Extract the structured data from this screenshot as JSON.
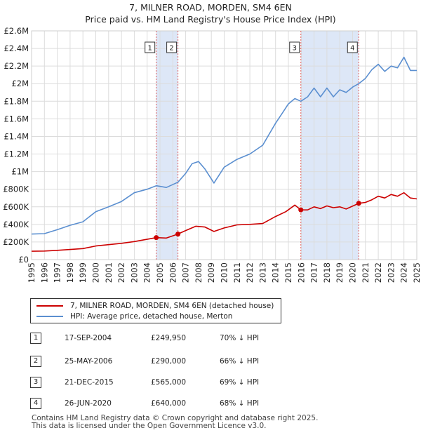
{
  "title_line1": "7, MILNER ROAD, MORDEN, SM4 6EN",
  "title_line2": "Price paid vs. HM Land Registry's House Price Index (HPI)",
  "legend": {
    "series1": "7, MILNER ROAD, MORDEN, SM4 6EN (detached house)",
    "series2": "HPI: Average price, detached house, Merton"
  },
  "colors": {
    "price": "#cc0000",
    "hpi": "#5b8fd0",
    "shade": "#dde7f7",
    "marker_line": "#e06060"
  },
  "sales": [
    {
      "num": "1",
      "date": "17-SEP-2004",
      "price": "£249,950",
      "hpi": "70% ↓ HPI"
    },
    {
      "num": "2",
      "date": "25-MAY-2006",
      "price": "£290,000",
      "hpi": "66% ↓ HPI"
    },
    {
      "num": "3",
      "date": "21-DEC-2015",
      "price": "£565,000",
      "hpi": "69% ↓ HPI"
    },
    {
      "num": "4",
      "date": "26-JUN-2020",
      "price": "£640,000",
      "hpi": "68% ↓ HPI"
    }
  ],
  "footer_line1": "Contains HM Land Registry data © Crown copyright and database right 2025.",
  "footer_line2": "This data is licensed under the Open Government Licence v3.0.",
  "chart_data": {
    "type": "line",
    "xlim": [
      1995,
      2025
    ],
    "ylim": [
      0,
      2600000
    ],
    "y_ticks": [
      0,
      200000,
      400000,
      600000,
      800000,
      1000000,
      1200000,
      1400000,
      1600000,
      1800000,
      2000000,
      2200000,
      2400000,
      2600000
    ],
    "y_tick_labels": [
      "£0",
      "£200K",
      "£400K",
      "£600K",
      "£800K",
      "£1M",
      "£1.2M",
      "£1.4M",
      "£1.6M",
      "£1.8M",
      "£2M",
      "£2.2M",
      "£2.4M",
      "£2.6M"
    ],
    "x_ticks": [
      "1995",
      "1996",
      "1997",
      "1998",
      "1999",
      "2000",
      "2001",
      "2002",
      "2003",
      "2004",
      "2005",
      "2006",
      "2007",
      "2008",
      "2009",
      "2010",
      "2011",
      "2012",
      "2013",
      "2014",
      "2015",
      "2016",
      "2017",
      "2018",
      "2019",
      "2020",
      "2021",
      "2022",
      "2023",
      "2024",
      "2025"
    ],
    "grid": true,
    "series": [
      {
        "name": "7, MILNER ROAD, MORDEN, SM4 6EN (detached house)",
        "x": [
          1995,
          1996,
          1997,
          1998,
          1999,
          2000,
          2001,
          2002,
          2003,
          2004.71,
          2005.5,
          2006.4,
          2007,
          2007.8,
          2008.5,
          2009.2,
          2010,
          2011,
          2012,
          2013,
          2014,
          2014.8,
          2015.5,
          2015.97,
          2016.5,
          2017,
          2017.5,
          2018,
          2018.5,
          2019,
          2019.5,
          2020.48,
          2021,
          2021.5,
          2022,
          2022.5,
          2023,
          2023.5,
          2024,
          2024.5,
          2025
        ],
        "values": [
          95000,
          97000,
          105000,
          115000,
          125000,
          155000,
          170000,
          185000,
          205000,
          249950,
          245000,
          290000,
          330000,
          380000,
          370000,
          320000,
          360000,
          395000,
          400000,
          410000,
          490000,
          545000,
          620000,
          565000,
          565000,
          600000,
          580000,
          610000,
          590000,
          600000,
          575000,
          640000,
          650000,
          680000,
          720000,
          700000,
          740000,
          720000,
          760000,
          700000,
          690000
        ]
      },
      {
        "name": "HPI: Average price, detached house, Merton",
        "x": [
          1995,
          1996,
          1997,
          1998,
          1999,
          2000,
          2001,
          2002,
          2003,
          2004,
          2004.71,
          2005.5,
          2006.4,
          2007,
          2007.5,
          2008,
          2008.5,
          2009.2,
          2010,
          2011,
          2012,
          2013,
          2014,
          2014.5,
          2015,
          2015.5,
          2015.97,
          2016.5,
          2017,
          2017.5,
          2018,
          2018.5,
          2019,
          2019.5,
          2020,
          2020.48,
          2021,
          2021.5,
          2022,
          2022.5,
          2023,
          2023.5,
          2024,
          2024.5,
          2025
        ],
        "values": [
          290000,
          295000,
          340000,
          390000,
          430000,
          545000,
          600000,
          660000,
          760000,
          800000,
          840000,
          820000,
          880000,
          980000,
          1090000,
          1115000,
          1030000,
          870000,
          1050000,
          1140000,
          1200000,
          1300000,
          1550000,
          1660000,
          1770000,
          1830000,
          1800000,
          1850000,
          1950000,
          1850000,
          1950000,
          1850000,
          1930000,
          1900000,
          1960000,
          2000000,
          2060000,
          2160000,
          2220000,
          2140000,
          2200000,
          2180000,
          2300000,
          2150000,
          2150000
        ]
      }
    ],
    "sale_markers": [
      {
        "label": "1",
        "x": 2004.71,
        "y": 249950
      },
      {
        "label": "2",
        "x": 2006.4,
        "y": 290000
      },
      {
        "label": "3",
        "x": 2015.97,
        "y": 565000
      },
      {
        "label": "4",
        "x": 2020.48,
        "y": 640000
      }
    ],
    "shaded_spans": [
      [
        2004.71,
        2006.4
      ],
      [
        2015.97,
        2020.48
      ]
    ]
  }
}
